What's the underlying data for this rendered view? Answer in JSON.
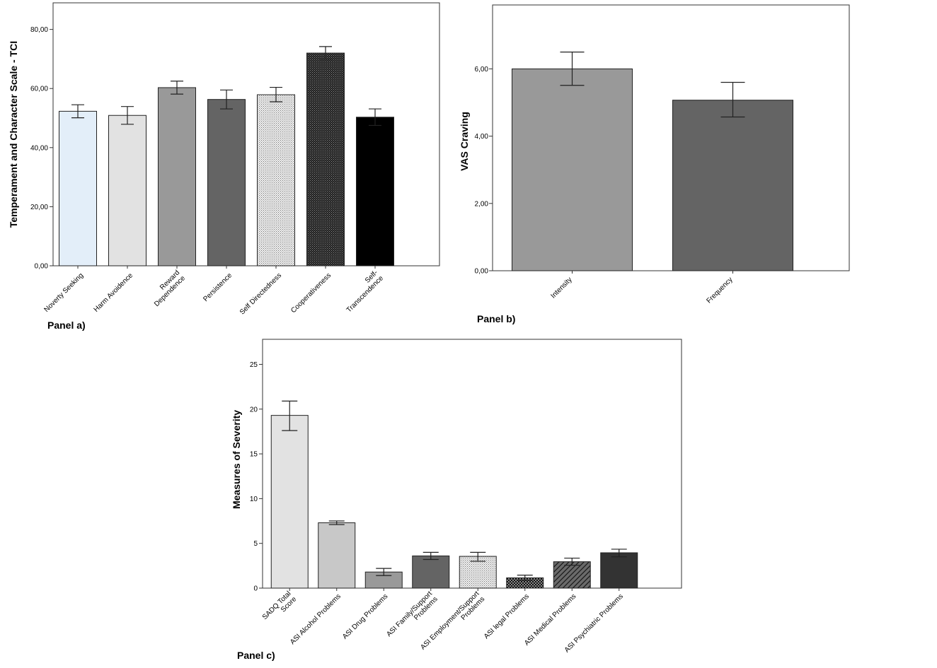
{
  "chart_data": [
    {
      "type": "bar",
      "panel_label": "Panel a)",
      "ylabel": "Temperament and Character Scale - TCI",
      "ylim": [
        0,
        89
      ],
      "yticks": [
        "0,00",
        "20,00",
        "40,00",
        "60,00",
        "80,00"
      ],
      "ytick_values": [
        0,
        20,
        40,
        60,
        80
      ],
      "categories": [
        "Noverty Seeking",
        "Harm Avoidence",
        "Reward\nDependence",
        "Persistence",
        "Self Directedness",
        "Cooperativeness",
        "Self-\nTranscendence"
      ],
      "values": [
        52.3,
        50.9,
        60.3,
        56.3,
        57.9,
        72.0,
        50.3
      ],
      "err_low": [
        50.1,
        47.9,
        58.1,
        53.1,
        55.5,
        69.9,
        47.5
      ],
      "err_high": [
        54.5,
        53.9,
        62.5,
        59.5,
        60.4,
        74.2,
        53.1
      ],
      "colors": [
        "#e3eef9",
        "#e2e2e2",
        "#999999",
        "#646464",
        "#777777",
        "#2e2e2e",
        "#000000"
      ],
      "patterns": [
        "",
        "",
        "",
        "",
        "dots-light",
        "dots-dark",
        ""
      ],
      "grid": false
    },
    {
      "type": "bar",
      "panel_label": "Panel b)",
      "ylabel": "VAS Craving",
      "ylim": [
        0,
        7.9
      ],
      "yticks": [
        "0,00",
        "2,00",
        "4,00",
        "6,00"
      ],
      "ytick_values": [
        0,
        2,
        4,
        6
      ],
      "categories": [
        "Intensity",
        "Frequency"
      ],
      "values": [
        6.0,
        5.07
      ],
      "err_low": [
        5.51,
        4.57
      ],
      "err_high": [
        6.5,
        5.6
      ],
      "colors": [
        "#999999",
        "#646464"
      ],
      "patterns": [
        "",
        ""
      ],
      "grid": false
    },
    {
      "type": "bar",
      "panel_label": "Panel c)",
      "ylabel": "Measures of Severity",
      "ylim": [
        0,
        27.8
      ],
      "yticks": [
        "0",
        "5",
        "10",
        "15",
        "20",
        "25"
      ],
      "ytick_values": [
        0,
        5,
        10,
        15,
        20,
        25
      ],
      "categories": [
        "SADQ Total\nScore",
        "ASI Alcohol Problems",
        "ASI Drug Problems",
        "ASI Family/Support\nProblems",
        "ASI Employment/Support\nProblems",
        "ASI legal Problems",
        "ASI Medical Problems",
        "ASI Psychiatric Problems"
      ],
      "values": [
        19.3,
        7.3,
        1.8,
        3.6,
        3.55,
        1.15,
        2.95,
        3.95
      ],
      "err_low": [
        17.6,
        7.1,
        1.4,
        3.2,
        3.0,
        0.85,
        2.55,
        3.5
      ],
      "err_high": [
        20.9,
        7.5,
        2.2,
        4.0,
        4.0,
        1.45,
        3.35,
        4.35
      ],
      "colors": [
        "#e2e2e2",
        "#c8c8c8",
        "#999999",
        "#646464",
        "#d6d6d6",
        "#3a3a3a",
        "#6a6a6a",
        "#333333"
      ],
      "patterns": [
        "",
        "",
        "",
        "",
        "dots-light",
        "checker",
        "hatch",
        ""
      ],
      "grid": false
    }
  ]
}
